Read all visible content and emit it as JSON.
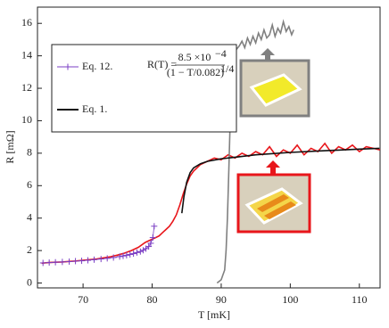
{
  "chart_data": {
    "type": "line",
    "xlabel": "T  [mK]",
    "ylabel": "R  [mΩ]",
    "xlim": [
      63.4,
      113
    ],
    "ylim": [
      -0.3,
      17
    ],
    "xticks": [
      70,
      80,
      90,
      100,
      110
    ],
    "yticks": [
      0,
      2,
      4,
      6,
      8,
      10,
      12,
      14,
      16
    ],
    "formula": {
      "lhs": "R(T) =",
      "numerator": "8.5 ×10",
      "numerator_exponent": "−4",
      "denominator": "(1 − T/0.082)",
      "denominator_exponent": "1/4"
    },
    "series": [
      {
        "color": "#e8161b",
        "marker": "none",
        "x": [
          64,
          65,
          66,
          67,
          68,
          69,
          70,
          71,
          72,
          73,
          74,
          75,
          76,
          77,
          78,
          79,
          80,
          80.5,
          81,
          81.5,
          82,
          82.5,
          83,
          83.5,
          84,
          84.5,
          85,
          85.5,
          86,
          86.5,
          87,
          87.5,
          88,
          89,
          90,
          91,
          92,
          93,
          94,
          95,
          96,
          97,
          98,
          99,
          100,
          101,
          102,
          103,
          104,
          105,
          106,
          107,
          108,
          109,
          110,
          111,
          112,
          113
        ],
        "values": [
          1.22,
          1.26,
          1.28,
          1.3,
          1.33,
          1.36,
          1.4,
          1.44,
          1.48,
          1.55,
          1.62,
          1.72,
          1.84,
          2.0,
          2.2,
          2.5,
          2.7,
          2.8,
          2.9,
          3.1,
          3.3,
          3.5,
          3.8,
          4.2,
          4.8,
          5.5,
          6.1,
          6.6,
          6.9,
          7.1,
          7.3,
          7.4,
          7.5,
          7.7,
          7.6,
          7.9,
          7.7,
          8.0,
          7.8,
          8.1,
          7.9,
          8.4,
          7.8,
          8.2,
          8.0,
          8.5,
          7.9,
          8.3,
          8.1,
          8.6,
          8.0,
          8.4,
          8.2,
          8.5,
          8.1,
          8.4,
          8.3,
          8.2
        ]
      },
      {
        "color": "#808080",
        "marker": "none",
        "x": [
          89.4,
          90,
          90.5,
          90.7,
          90.9,
          91.1,
          91.3,
          91.5,
          91.8,
          92.2,
          92.6,
          93,
          93.4,
          93.8,
          94.2,
          94.6,
          95,
          95.4,
          95.8,
          96.2,
          96.6,
          97,
          97.4,
          97.8,
          98.2,
          98.6,
          99,
          99.4,
          99.8,
          100.2,
          100.5
        ],
        "values": [
          0,
          0.2,
          0.8,
          2,
          4,
          7,
          10,
          12.5,
          13.8,
          14.4,
          14.6,
          14.9,
          14.5,
          15.1,
          14.7,
          15.2,
          14.8,
          15.4,
          15.0,
          15.6,
          15.1,
          15.3,
          15.9,
          15.2,
          15.7,
          15.4,
          16.1,
          15.5,
          15.8,
          15.3,
          15.6
        ]
      },
      {
        "name": "Eq. 12.",
        "color": "#7b3fc4",
        "marker": "+",
        "x": [
          64.2,
          65.1,
          66,
          67,
          68,
          68.9,
          69.8,
          70.7,
          71.6,
          72.6,
          73.5,
          74.4,
          75.3,
          75.8,
          76.3,
          76.8,
          77.3,
          77.8,
          78.3,
          78.7,
          79.1,
          79.5,
          79.8,
          80.1,
          80.3
        ],
        "values": [
          1.24,
          1.26,
          1.28,
          1.3,
          1.32,
          1.35,
          1.37,
          1.4,
          1.44,
          1.48,
          1.52,
          1.57,
          1.63,
          1.67,
          1.71,
          1.76,
          1.81,
          1.88,
          1.94,
          2.02,
          2.12,
          2.25,
          2.45,
          2.8,
          3.5
        ]
      },
      {
        "name": "Eq. 1.",
        "color": "#111111",
        "marker": "none",
        "x": [
          84.3,
          84.6,
          85,
          85.5,
          86,
          87,
          88,
          90,
          92,
          95,
          100,
          105,
          110,
          112.9
        ],
        "values": [
          4.3,
          5.3,
          6.2,
          6.8,
          7.1,
          7.35,
          7.5,
          7.65,
          7.75,
          7.9,
          8.05,
          8.15,
          8.25,
          8.3
        ]
      }
    ]
  }
}
